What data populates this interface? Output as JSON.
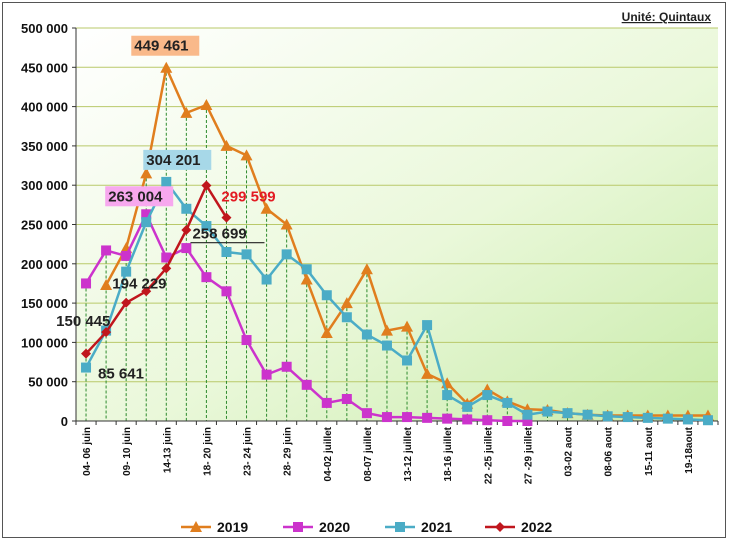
{
  "unit_label": "Unité: Quintaux",
  "chart_data": {
    "type": "line",
    "title": "",
    "xlabel": "",
    "ylabel": "",
    "ylim": [
      0,
      500000
    ],
    "yticks": [
      0,
      50000,
      100000,
      150000,
      200000,
      250000,
      300000,
      350000,
      400000,
      450000,
      500000
    ],
    "ytick_labels": [
      "0",
      "50 000",
      "100 000",
      "150 000",
      "200 000",
      "250 000",
      "300 000",
      "350 000",
      "400 000",
      "450 000",
      "500 000"
    ],
    "grid": true,
    "legend_position": "bottom",
    "x_tick_labels": [
      {
        "index": 0,
        "label": "04- 06 juin"
      },
      {
        "index": 2,
        "label": "09- 10 juin"
      },
      {
        "index": 4,
        "label": "14-13 juin"
      },
      {
        "index": 6,
        "label": "18- 20 juin"
      },
      {
        "index": 8,
        "label": "23- 24 juin"
      },
      {
        "index": 10,
        "label": "28- 29 juin"
      },
      {
        "index": 12,
        "label": "04-02 juillet"
      },
      {
        "index": 14,
        "label": "08-07 juillet"
      },
      {
        "index": 16,
        "label": "13-12 juillet"
      },
      {
        "index": 18,
        "label": "18-16 juillet"
      },
      {
        "index": 20,
        "label": "22 -25 juillet"
      },
      {
        "index": 22,
        "label": "27 -29 juillet"
      },
      {
        "index": 24,
        "label": "03-02 aout"
      },
      {
        "index": 26,
        "label": "08-06 aout"
      },
      {
        "index": 28,
        "label": "15-11 aout"
      },
      {
        "index": 30,
        "label": "19-18aout"
      }
    ],
    "point_count": 32,
    "series": [
      {
        "name": "2019",
        "color": "#E07E1E",
        "marker": "triangle",
        "values": [
          null,
          173000,
          220000,
          315000,
          449461,
          392000,
          402000,
          350000,
          338000,
          270000,
          250000,
          180000,
          112000,
          150000,
          193000,
          115000,
          120000,
          60000,
          48000,
          22000,
          40000,
          25000,
          15000,
          14000,
          10000,
          8000,
          7000,
          7000,
          7000,
          7000,
          7000,
          7000
        ]
      },
      {
        "name": "2020",
        "color": "#CC33CC",
        "marker": "square",
        "values": [
          175000,
          217000,
          210000,
          263004,
          208000,
          220000,
          183000,
          165000,
          103000,
          59000,
          69000,
          46000,
          23000,
          28000,
          10000,
          5000,
          5000,
          4000,
          3000,
          2000,
          1000,
          0,
          0,
          null,
          null,
          null,
          null,
          null,
          null,
          null,
          null,
          null
        ]
      },
      {
        "name": "2021",
        "color": "#4BACC6",
        "marker": "square",
        "values": [
          68000,
          115000,
          190000,
          253000,
          304201,
          270000,
          248000,
          215000,
          212000,
          180000,
          212000,
          193000,
          160000,
          132000,
          110000,
          96000,
          77000,
          122000,
          33000,
          18000,
          33000,
          23000,
          8000,
          12000,
          10000,
          8000,
          6000,
          5000,
          4000,
          3000,
          2000,
          1000
        ]
      },
      {
        "name": "2022",
        "color": "#C0161D",
        "marker": "diamond",
        "values": [
          85641,
          113000,
          150445,
          165000,
          194229,
          243000,
          299599,
          258699,
          null,
          null,
          null,
          null,
          null,
          null,
          null,
          null,
          null,
          null,
          null,
          null,
          null,
          null,
          null,
          null,
          null,
          null,
          null,
          null,
          null,
          null,
          null,
          null
        ]
      }
    ],
    "annotations": [
      {
        "text": "449 461",
        "series": "2019",
        "index": 4,
        "style": "boxed",
        "bg": "#F9B98A",
        "color": "#222222"
      },
      {
        "text": "304 201",
        "series": "2021",
        "index": 4,
        "style": "boxed",
        "bg": "#A7D8E8",
        "color": "#222222"
      },
      {
        "text": "263 004",
        "series": "2020",
        "index": 3,
        "style": "boxed",
        "bg": "#F7A8EE",
        "color": "#222222"
      },
      {
        "text": "299 599",
        "series": "2022",
        "index": 6,
        "style": "plain",
        "color": "#E31B23"
      },
      {
        "text": "258 699",
        "series": "2022",
        "index": 7,
        "style": "underlined",
        "color": "#222222"
      },
      {
        "text": "194 229",
        "series": "2022",
        "index": 4,
        "style": "plain",
        "color": "#222222"
      },
      {
        "text": "150 445",
        "series": "2022",
        "index": 2,
        "style": "plain",
        "color": "#222222"
      },
      {
        "text": "85 641",
        "series": "2022",
        "index": 0,
        "style": "plain",
        "color": "#222222"
      }
    ]
  }
}
